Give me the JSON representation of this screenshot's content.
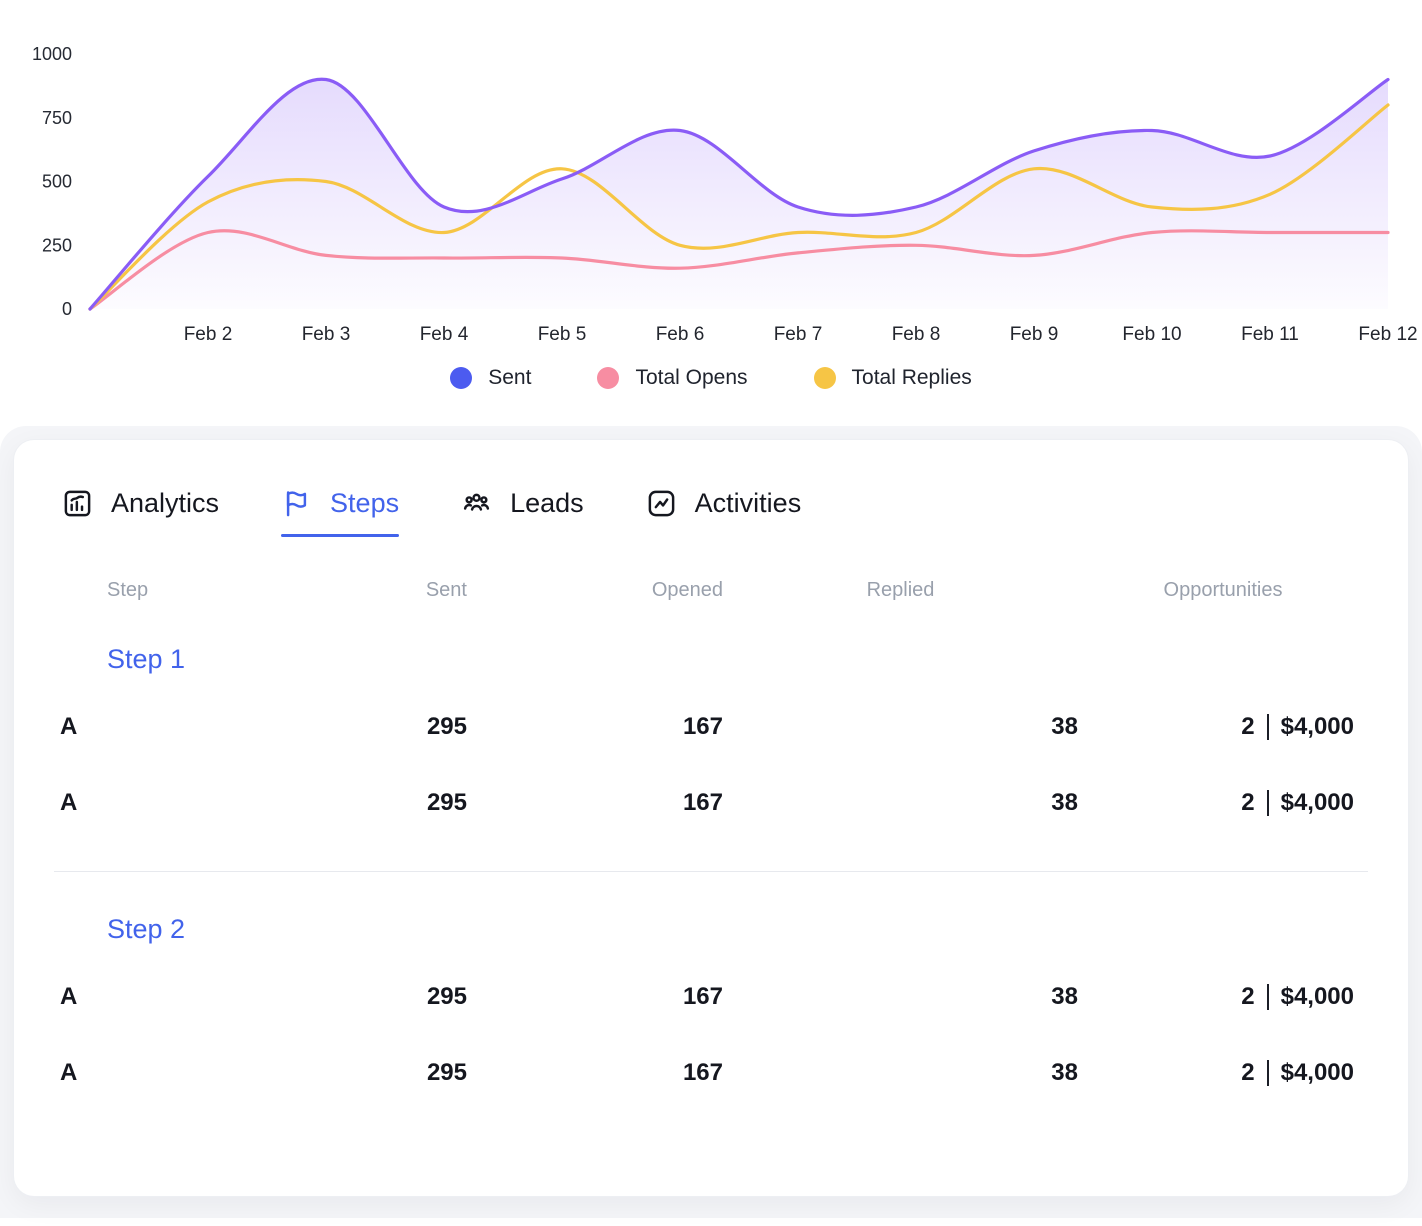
{
  "chart_data": {
    "type": "line",
    "title": "",
    "xlabel": "",
    "ylabel": "",
    "ylim": [
      0,
      1000
    ],
    "grid": false,
    "legend_position": "bottom",
    "y_ticks": [
      0,
      250,
      500,
      750,
      1000
    ],
    "categories": [
      "",
      "Feb 2",
      "Feb 3",
      "Feb 4",
      "Feb 5",
      "Feb 6",
      "Feb 7",
      "Feb 8",
      "Feb 9",
      "Feb 10",
      "Feb 11",
      "Feb 12"
    ],
    "series": [
      {
        "name": "Sent",
        "line_color": "#8a5cf6",
        "legend_color": "#4c5bf0",
        "area_fill": true,
        "values": [
          0,
          520,
          900,
          400,
          510,
          700,
          400,
          400,
          620,
          700,
          600,
          900
        ]
      },
      {
        "name": "Total Opens",
        "line_color": "#f78da2",
        "legend_color": "#f78da2",
        "area_fill": false,
        "values": [
          0,
          300,
          210,
          200,
          200,
          160,
          220,
          250,
          210,
          300,
          300,
          300
        ]
      },
      {
        "name": "Total Replies",
        "line_color": "#f6c545",
        "legend_color": "#f6c545",
        "area_fill": false,
        "values": [
          0,
          420,
          500,
          300,
          550,
          250,
          300,
          300,
          550,
          400,
          450,
          800
        ]
      }
    ]
  },
  "tabs": [
    {
      "label": "Analytics"
    },
    {
      "label": "Steps"
    },
    {
      "label": "Leads"
    },
    {
      "label": "Activities"
    }
  ],
  "active_tab_index": 1,
  "table": {
    "headers": {
      "step": "Step",
      "sent": "Sent",
      "opened": "Opened",
      "replied": "Replied",
      "opportunities": "Opportunities"
    },
    "groups": [
      {
        "label": "Step 1",
        "rows": [
          {
            "variant": "A",
            "sent": "295",
            "opened": "167",
            "replied": "38",
            "opp_count": "2",
            "opp_amount": "$4,000"
          },
          {
            "variant": "A",
            "sent": "295",
            "opened": "167",
            "replied": "38",
            "opp_count": "2",
            "opp_amount": "$4,000"
          }
        ]
      },
      {
        "label": "Step 2",
        "rows": [
          {
            "variant": "A",
            "sent": "295",
            "opened": "167",
            "replied": "38",
            "opp_count": "2",
            "opp_amount": "$4,000"
          },
          {
            "variant": "A",
            "sent": "295",
            "opened": "167",
            "replied": "38",
            "opp_count": "2",
            "opp_amount": "$4,000"
          }
        ]
      }
    ]
  },
  "colors": {
    "accent": "#4263eb",
    "text_dark": "#15171f",
    "text_muted": "#99a0ac"
  }
}
